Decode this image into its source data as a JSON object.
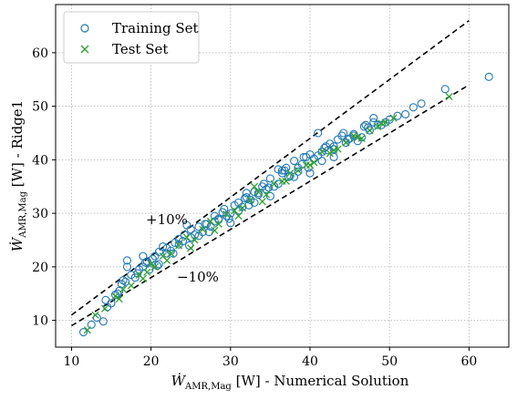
{
  "chart_data": {
    "type": "scatter",
    "title": "",
    "xlabel_main": "Ẇ",
    "xlabel_sub": "AMR,Mag",
    "xlabel_suffix": " [W] - Numerical Solution",
    "ylabel_main": "Ẇ",
    "ylabel_sub": "AMR,Mag",
    "ylabel_suffix": " [W] - Ridge1",
    "xlim": [
      8,
      65
    ],
    "ylim": [
      5,
      69
    ],
    "xticks": [
      10,
      20,
      30,
      40,
      50,
      60
    ],
    "yticks": [
      10,
      20,
      30,
      40,
      50,
      60
    ],
    "grid": true,
    "legend_position": "top-left",
    "colors": {
      "train": "#1f77b4",
      "test": "#2ca02c",
      "bounds": "#000000"
    },
    "bounds": {
      "upper": {
        "label": "+10%",
        "factor": 1.1,
        "x": [
          10,
          60
        ]
      },
      "lower": {
        "label": "−10%",
        "factor": 0.9,
        "x": [
          10,
          60
        ]
      }
    },
    "series": [
      {
        "name": "Training Set",
        "marker": "circle-open",
        "x": [
          11.5,
          12.5,
          13.2,
          14.0,
          14.5,
          15.0,
          15.5,
          16.0,
          16.3,
          16.8,
          17.0,
          17.5,
          18.0,
          18.5,
          19.0,
          19.3,
          19.8,
          20.2,
          20.5,
          21.0,
          21.5,
          22.0,
          22.5,
          23.0,
          23.5,
          24.0,
          24.5,
          25.0,
          25.5,
          26.0,
          26.5,
          27.0,
          27.5,
          28.0,
          28.5,
          29.0,
          29.5,
          30.0,
          30.5,
          31.0,
          31.5,
          32.0,
          32.5,
          33.0,
          33.5,
          34.0,
          34.5,
          35.0,
          35.5,
          36.0,
          36.5,
          37.0,
          37.5,
          38.0,
          38.5,
          39.0,
          39.5,
          40.0,
          40.5,
          41.0,
          41.5,
          42.0,
          42.5,
          43.0,
          43.5,
          44.0,
          44.5,
          45.0,
          45.5,
          46.0,
          46.5,
          47.0,
          47.5,
          48.0,
          48.5,
          49.0,
          49.5,
          50.0,
          51.0,
          52.0,
          53.0,
          54.0,
          57.0,
          62.5,
          17.0,
          19.0,
          21.0,
          23.5,
          26.0,
          28.5,
          31.0,
          33.5,
          36.0,
          38.5,
          41.0,
          43.0,
          45.5,
          48.0,
          14.3,
          15.8,
          18.3,
          20.8,
          22.8,
          24.8,
          27.3,
          29.8,
          32.3,
          34.8,
          37.3,
          39.8,
          42.3,
          44.8,
          47.3,
          30.0,
          35.0,
          40.0,
          25.0,
          33.0,
          38.0,
          43.0,
          28.0,
          32.0,
          36.5,
          41.5,
          16.5,
          19.5,
          22.0,
          24.2,
          26.8,
          29.2,
          31.8,
          34.2,
          36.8,
          39.2,
          41.8,
          44.2,
          46.8
        ],
        "y": [
          7.8,
          9.2,
          10.5,
          9.8,
          12.5,
          13.2,
          14.8,
          15.5,
          16.8,
          17.2,
          20.0,
          18.5,
          18.0,
          19.5,
          22.0,
          20.8,
          19.5,
          21.5,
          22.0,
          20.5,
          23.8,
          22.5,
          23.0,
          24.5,
          25.2,
          24.8,
          27.8,
          25.5,
          26.0,
          27.5,
          26.5,
          28.0,
          27.5,
          28.5,
          29.0,
          30.2,
          29.5,
          30.0,
          31.5,
          32.0,
          31.2,
          33.0,
          32.5,
          34.0,
          33.8,
          35.0,
          34.5,
          36.5,
          35.0,
          38.2,
          37.5,
          38.5,
          37.0,
          39.8,
          38.5,
          39.2,
          40.5,
          41.0,
          40.2,
          45.0,
          41.5,
          42.5,
          43.0,
          42.0,
          43.8,
          44.5,
          43.2,
          44.0,
          44.8,
          43.5,
          44.2,
          46.5,
          45.5,
          47.8,
          46.5,
          46.5,
          47.0,
          47.5,
          48.2,
          48.5,
          49.8,
          50.5,
          53.2,
          55.5,
          21.2,
          20.0,
          22.8,
          24.2,
          25.8,
          28.8,
          30.5,
          33.5,
          35.5,
          37.8,
          40.8,
          42.5,
          44.5,
          47.0,
          13.8,
          15.0,
          18.8,
          20.2,
          22.5,
          24.0,
          26.5,
          29.0,
          31.5,
          34.8,
          36.8,
          38.5,
          41.8,
          43.8,
          46.0,
          28.2,
          33.2,
          37.5,
          27.0,
          32.0,
          36.8,
          40.5,
          29.5,
          33.8,
          38.0,
          39.8,
          17.5,
          21.0,
          23.5,
          26.0,
          28.0,
          30.8,
          32.8,
          35.5,
          38.0,
          40.5,
          42.2,
          45.0,
          46.2
        ]
      },
      {
        "name": "Test Set",
        "marker": "x",
        "x": [
          12.0,
          13.0,
          14.2,
          15.5,
          16.5,
          17.5,
          18.5,
          19.5,
          20.5,
          21.5,
          22.5,
          23.5,
          24.5,
          25.5,
          26.5,
          27.5,
          28.5,
          29.5,
          30.5,
          31.5,
          32.5,
          33.5,
          34.5,
          35.5,
          36.5,
          37.5,
          38.5,
          39.5,
          40.5,
          41.5,
          42.5,
          43.5,
          44.5,
          45.5,
          46.5,
          47.5,
          48.5,
          49.5,
          50.5,
          57.5,
          16.0,
          19.0,
          22.0,
          25.0,
          28.0,
          31.0,
          34.0,
          37.0,
          40.0,
          43.0,
          46.0,
          49.0,
          33.0,
          20.0
        ],
        "y": [
          8.2,
          11.0,
          12.2,
          14.5,
          15.8,
          16.5,
          18.5,
          19.0,
          20.0,
          22.0,
          22.5,
          24.0,
          25.5,
          25.0,
          27.0,
          28.5,
          28.0,
          29.8,
          30.5,
          31.0,
          32.5,
          34.0,
          33.5,
          35.5,
          36.0,
          37.5,
          38.0,
          39.0,
          39.5,
          41.5,
          41.2,
          42.0,
          43.2,
          44.5,
          44.0,
          45.5,
          46.2,
          47.0,
          47.8,
          51.8,
          14.0,
          17.8,
          21.2,
          23.5,
          26.8,
          29.5,
          32.2,
          36.0,
          39.0,
          41.8,
          44.2,
          46.8,
          35.0,
          20.5
        ]
      }
    ]
  }
}
